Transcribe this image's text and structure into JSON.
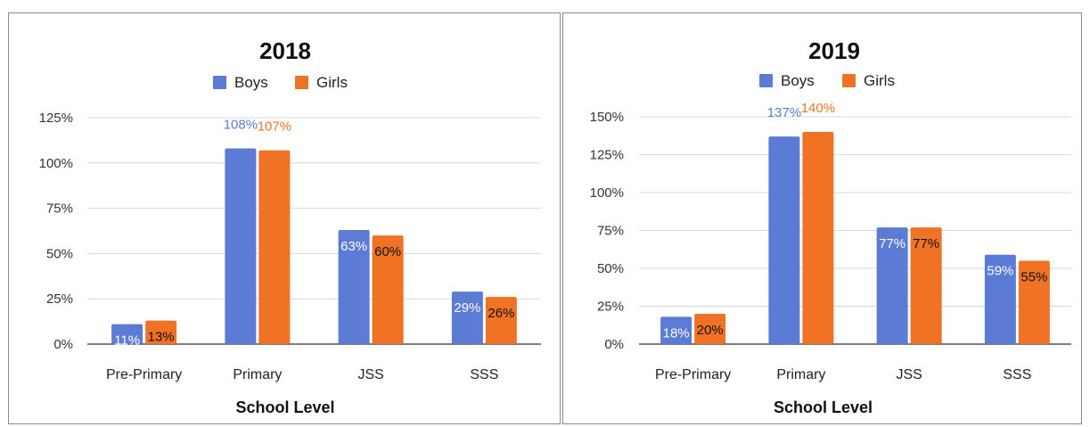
{
  "chart_data": [
    {
      "type": "bar",
      "title": "2018",
      "xlabel": "School Level",
      "ylabel": "",
      "categories": [
        "Pre-Primary",
        "Primary",
        "JSS",
        "SSS"
      ],
      "series": [
        {
          "name": "Boys",
          "values": [
            11,
            108,
            63,
            29
          ],
          "labels": [
            "11%",
            "108%",
            "63%",
            "29%"
          ]
        },
        {
          "name": "Girls",
          "values": [
            13,
            107,
            60,
            26
          ],
          "labels": [
            "13%",
            "107%",
            "60%",
            "26%"
          ]
        }
      ],
      "ylim": [
        0,
        125
      ],
      "yticks": [
        0,
        25,
        50,
        75,
        100,
        125
      ],
      "ytick_labels": [
        "0%",
        "25%",
        "50%",
        "75%",
        "100%",
        "125%"
      ],
      "grid": true,
      "legend_position": "top-center"
    },
    {
      "type": "bar",
      "title": "2019",
      "xlabel": "School Level",
      "ylabel": "",
      "categories": [
        "Pre-Primary",
        "Primary",
        "JSS",
        "SSS"
      ],
      "series": [
        {
          "name": "Boys",
          "values": [
            18,
            137,
            77,
            59
          ],
          "labels": [
            "18%",
            "137%",
            "77%",
            "59%"
          ]
        },
        {
          "name": "Girls",
          "values": [
            20,
            140,
            77,
            55
          ],
          "labels": [
            "20%",
            "140%",
            "77%",
            "55%"
          ]
        }
      ],
      "ylim": [
        0,
        150
      ],
      "yticks": [
        0,
        25,
        50,
        75,
        100,
        125,
        150
      ],
      "ytick_labels": [
        "0%",
        "25%",
        "50%",
        "75%",
        "100%",
        "125%",
        "150%"
      ],
      "grid": true,
      "legend_position": "top-center"
    }
  ],
  "colors": {
    "boys": "#5b7bd5",
    "girls": "#f07224",
    "label_inside": "#ffffff",
    "label_dark": "#111111"
  }
}
